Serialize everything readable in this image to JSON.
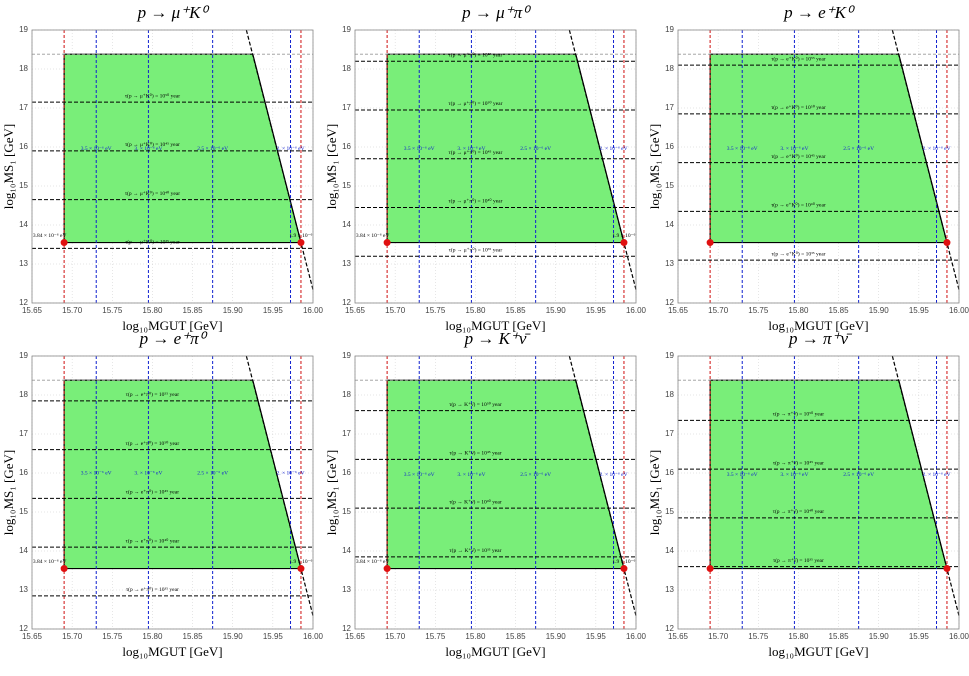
{
  "chart_data": [
    {
      "type": "region",
      "title": "p → μ⁺K⁰",
      "x_label": "log₁₀MGUT [GeV]",
      "y_label": "log₁₀MS₁ [GeV]",
      "xlim": [
        15.65,
        16.0
      ],
      "ylim": [
        12,
        19
      ],
      "xticks": [
        15.65,
        {
          "value": 15.7,
          "label": "15.70"
        },
        15.75,
        {
          "value": 15.8,
          "label": "15.80"
        },
        15.85,
        {
          "value": 15.9,
          "label": "15.90"
        },
        15.95,
        {
          "value": 16,
          "label": "16.00"
        }
      ],
      "yticks": [
        12,
        13,
        14,
        15,
        16,
        17,
        18,
        19
      ],
      "grid": true,
      "fill": "#79ee79",
      "region": {
        "x": [
          15.69,
          15.69,
          15.925,
          15.985
        ],
        "y": [
          13.55,
          18.38,
          18.38,
          13.55
        ]
      },
      "boundary": {
        "x": [
          15.917,
          16.0
        ],
        "y": [
          19,
          12.34
        ]
      },
      "points": {
        "x": [
          15.69,
          15.985
        ],
        "y": [
          13.55,
          13.55
        ],
        "color": "#e01010"
      },
      "vlines": [
        {
          "x": 15.69,
          "color": "#d01010"
        },
        {
          "x": 15.73,
          "color": "#1020d0"
        },
        {
          "x": 15.795,
          "color": "#1020d0"
        },
        {
          "x": 15.875,
          "color": "#1020d0"
        },
        {
          "x": 15.972,
          "color": "#1020d0"
        },
        {
          "x": 15.985,
          "color": "#d01010"
        }
      ],
      "ref_lines": [
        {
          "y": 18.38,
          "color": "#999999"
        }
      ],
      "hlines": [
        {
          "y": 17.15,
          "label": "τ(p → μ⁺K⁰) = 10⁵⁰ year"
        },
        {
          "y": 15.9,
          "label": "τ(p → μ⁺K⁰) = 10⁴⁵ year"
        },
        {
          "y": 14.65,
          "label": "τ(p → μ⁺K⁰) = 10⁴⁰ year"
        },
        {
          "y": 13.4,
          "label": "τ(p → μ⁺K⁰) = 10³⁵ year"
        }
      ],
      "annotations": [
        {
          "x": 15.672,
          "y": 13.72,
          "text": "3.84 × 10⁻⁶ eV",
          "color": "#000000"
        },
        {
          "x": 15.985,
          "y": 13.72,
          "text": "1.9 × 10⁻⁶",
          "color": "#000000"
        },
        {
          "x": 15.73,
          "y": 15.95,
          "text": "3.5 × 10⁻⁶ eV",
          "color": "#1020d0"
        },
        {
          "x": 15.795,
          "y": 15.95,
          "text": "3. × 10⁻⁶ eV",
          "color": "#1020d0"
        },
        {
          "x": 15.875,
          "y": 15.95,
          "text": "2.5 × 10⁻⁶ eV",
          "color": "#1020d0"
        },
        {
          "x": 15.972,
          "y": 15.95,
          "text": "2. × 10⁻⁶ eV",
          "color": "#1020d0"
        }
      ]
    },
    {
      "type": "region",
      "title": "p → μ⁺π⁰",
      "x_label": "log₁₀MGUT [GeV]",
      "y_label": "log₁₀MS₁ [GeV]",
      "xlim": [
        15.65,
        16.0
      ],
      "ylim": [
        12,
        19
      ],
      "xticks": [
        15.65,
        {
          "value": 15.7,
          "label": "15.70"
        },
        15.75,
        {
          "value": 15.8,
          "label": "15.80"
        },
        15.85,
        {
          "value": 15.9,
          "label": "15.90"
        },
        15.95,
        {
          "value": 16,
          "label": "16.00"
        }
      ],
      "yticks": [
        12,
        13,
        14,
        15,
        16,
        17,
        18,
        19
      ],
      "grid": true,
      "fill": "#79ee79",
      "region": {
        "x": [
          15.69,
          15.69,
          15.925,
          15.985
        ],
        "y": [
          13.55,
          18.38,
          18.38,
          13.55
        ]
      },
      "boundary": {
        "x": [
          15.917,
          16.0
        ],
        "y": [
          19,
          12.34
        ]
      },
      "points": {
        "x": [
          15.69,
          15.985
        ],
        "y": [
          13.55,
          13.55
        ],
        "color": "#e01010"
      },
      "vlines": [
        {
          "x": 15.69,
          "color": "#d01010"
        },
        {
          "x": 15.73,
          "color": "#1020d0"
        },
        {
          "x": 15.795,
          "color": "#1020d0"
        },
        {
          "x": 15.875,
          "color": "#1020d0"
        },
        {
          "x": 15.972,
          "color": "#1020d0"
        },
        {
          "x": 15.985,
          "color": "#d01010"
        }
      ],
      "ref_lines": [
        {
          "y": 18.38,
          "color": "#999999"
        }
      ],
      "hlines": [
        {
          "y": 18.2,
          "label": "τ(p → μ⁺π⁰) = 10⁵⁵ year"
        },
        {
          "y": 16.95,
          "label": "τ(p → μ⁺π⁰) = 10⁵⁰ year"
        },
        {
          "y": 15.7,
          "label": "τ(p → μ⁺π⁰) = 10⁴⁵ year"
        },
        {
          "y": 14.45,
          "label": "τ(p → μ⁺π⁰) = 10⁴⁰ year"
        },
        {
          "y": 13.2,
          "label": "τ(p → μ⁺π⁰) = 10³⁵ year"
        }
      ],
      "annotations": [
        {
          "x": 15.672,
          "y": 13.72,
          "text": "3.84 × 10⁻⁶ eV",
          "color": "#000000"
        },
        {
          "x": 15.985,
          "y": 13.72,
          "text": "1.9 × 10⁻⁶",
          "color": "#000000"
        },
        {
          "x": 15.73,
          "y": 15.95,
          "text": "3.5 × 10⁻⁶ eV",
          "color": "#1020d0"
        },
        {
          "x": 15.795,
          "y": 15.95,
          "text": "3. × 10⁻⁶ eV",
          "color": "#1020d0"
        },
        {
          "x": 15.875,
          "y": 15.95,
          "text": "2.5 × 10⁻⁶ eV",
          "color": "#1020d0"
        },
        {
          "x": 15.972,
          "y": 15.95,
          "text": "2. × 10⁻⁶ eV",
          "color": "#1020d0"
        }
      ]
    },
    {
      "type": "region",
      "title": "p → e⁺K⁰",
      "x_label": "log₁₀MGUT [GeV]",
      "y_label": "log₁₀MS₁ [GeV]",
      "xlim": [
        15.65,
        16.0
      ],
      "ylim": [
        12,
        19
      ],
      "xticks": [
        15.65,
        {
          "value": 15.7,
          "label": "15.70"
        },
        15.75,
        {
          "value": 15.8,
          "label": "15.80"
        },
        15.85,
        {
          "value": 15.9,
          "label": "15.90"
        },
        15.95,
        {
          "value": 16,
          "label": "16.00"
        }
      ],
      "yticks": [
        12,
        13,
        14,
        15,
        16,
        17,
        18,
        19
      ],
      "grid": true,
      "fill": "#79ee79",
      "region": {
        "x": [
          15.69,
          15.69,
          15.925,
          15.985
        ],
        "y": [
          13.55,
          18.38,
          18.38,
          13.55
        ]
      },
      "boundary": {
        "x": [
          15.917,
          16.0
        ],
        "y": [
          19,
          12.34
        ]
      },
      "points": {
        "x": [
          15.69,
          15.985
        ],
        "y": [
          13.55,
          13.55
        ],
        "color": "#e01010"
      },
      "vlines": [
        {
          "x": 15.69,
          "color": "#d01010"
        },
        {
          "x": 15.73,
          "color": "#1020d0"
        },
        {
          "x": 15.795,
          "color": "#1020d0"
        },
        {
          "x": 15.875,
          "color": "#1020d0"
        },
        {
          "x": 15.972,
          "color": "#1020d0"
        },
        {
          "x": 15.985,
          "color": "#d01010"
        }
      ],
      "ref_lines": [
        {
          "y": 18.38,
          "color": "#999999"
        }
      ],
      "hlines": [
        {
          "y": 18.1,
          "label": "τ(p → e⁺K⁰) = 10⁵⁵ year"
        },
        {
          "y": 16.85,
          "label": "τ(p → e⁺K⁰) = 10⁵⁰ year"
        },
        {
          "y": 15.6,
          "label": "τ(p → e⁺K⁰) = 10⁴⁵ year"
        },
        {
          "y": 14.35,
          "label": "τ(p → e⁺K⁰) = 10⁴⁰ year"
        },
        {
          "y": 13.1,
          "label": "τ(p → e⁺K⁰) = 10³⁵ year"
        }
      ],
      "annotations": [
        {
          "x": 15.73,
          "y": 15.95,
          "text": "3.5 × 10⁻⁶ eV",
          "color": "#1020d0"
        },
        {
          "x": 15.795,
          "y": 15.95,
          "text": "3. × 10⁻⁶ eV",
          "color": "#1020d0"
        },
        {
          "x": 15.875,
          "y": 15.95,
          "text": "2.5 × 10⁻⁶ eV",
          "color": "#1020d0"
        },
        {
          "x": 15.972,
          "y": 15.95,
          "text": "2. × 10⁻⁶ eV",
          "color": "#1020d0"
        }
      ]
    },
    {
      "type": "region",
      "title": "p → e⁺π⁰",
      "x_label": "log₁₀MGUT [GeV]",
      "y_label": "log₁₀MS₁ [GeV]",
      "xlim": [
        15.65,
        16.0
      ],
      "ylim": [
        12,
        19
      ],
      "xticks": [
        15.65,
        {
          "value": 15.7,
          "label": "15.70"
        },
        15.75,
        {
          "value": 15.8,
          "label": "15.80"
        },
        15.85,
        {
          "value": 15.9,
          "label": "15.90"
        },
        15.95,
        {
          "value": 16,
          "label": "16.00"
        }
      ],
      "yticks": [
        12,
        13,
        14,
        15,
        16,
        17,
        18,
        19
      ],
      "grid": true,
      "fill": "#79ee79",
      "region": {
        "x": [
          15.69,
          15.69,
          15.925,
          15.985
        ],
        "y": [
          13.55,
          18.38,
          18.38,
          13.55
        ]
      },
      "boundary": {
        "x": [
          15.917,
          16.0
        ],
        "y": [
          19,
          12.34
        ]
      },
      "points": {
        "x": [
          15.69,
          15.985
        ],
        "y": [
          13.55,
          13.55
        ],
        "color": "#e01010"
      },
      "vlines": [
        {
          "x": 15.69,
          "color": "#d01010"
        },
        {
          "x": 15.73,
          "color": "#1020d0"
        },
        {
          "x": 15.795,
          "color": "#1020d0"
        },
        {
          "x": 15.875,
          "color": "#1020d0"
        },
        {
          "x": 15.972,
          "color": "#1020d0"
        },
        {
          "x": 15.985,
          "color": "#d01010"
        }
      ],
      "ref_lines": [
        {
          "y": 18.38,
          "color": "#999999"
        }
      ],
      "hlines": [
        {
          "y": 17.85,
          "label": "τ(p → e⁺π⁰) = 10⁵⁵ year"
        },
        {
          "y": 16.6,
          "label": "τ(p → e⁺π⁰) = 10⁵⁰ year"
        },
        {
          "y": 15.35,
          "label": "τ(p → e⁺π⁰) = 10⁴⁵ year"
        },
        {
          "y": 14.1,
          "label": "τ(p → e⁺π⁰) = 10⁴⁰ year"
        },
        {
          "y": 12.85,
          "label": "τ(p → e⁺π⁰) = 10³⁵ year"
        }
      ],
      "annotations": [
        {
          "x": 15.672,
          "y": 13.72,
          "text": "3.84 × 10⁻⁶ eV",
          "color": "#000000"
        },
        {
          "x": 15.985,
          "y": 13.72,
          "text": "1.9 × 10⁻⁶",
          "color": "#000000"
        },
        {
          "x": 15.73,
          "y": 16.0,
          "text": "3.5 × 10⁻⁶ eV",
          "color": "#1020d0"
        },
        {
          "x": 15.795,
          "y": 16.0,
          "text": "3. × 10⁻⁶ eV",
          "color": "#1020d0"
        },
        {
          "x": 15.875,
          "y": 16.0,
          "text": "2.5 × 10⁻⁶ eV",
          "color": "#1020d0"
        },
        {
          "x": 15.972,
          "y": 16.0,
          "text": "2. × 10⁻⁶ eV",
          "color": "#1020d0"
        }
      ]
    },
    {
      "type": "region",
      "title": "p → K⁺ν̄",
      "x_label": "log₁₀MGUT [GeV]",
      "y_label": "log₁₀MS₁ [GeV]",
      "xlim": [
        15.65,
        16.0
      ],
      "ylim": [
        12,
        19
      ],
      "xticks": [
        15.65,
        {
          "value": 15.7,
          "label": "15.70"
        },
        15.75,
        {
          "value": 15.8,
          "label": "15.80"
        },
        15.85,
        {
          "value": 15.9,
          "label": "15.90"
        },
        15.95,
        {
          "value": 16,
          "label": "16.00"
        }
      ],
      "yticks": [
        12,
        13,
        14,
        15,
        16,
        17,
        18,
        19
      ],
      "grid": true,
      "fill": "#79ee79",
      "region": {
        "x": [
          15.69,
          15.69,
          15.925,
          15.985
        ],
        "y": [
          13.55,
          18.38,
          18.38,
          13.55
        ]
      },
      "boundary": {
        "x": [
          15.917,
          16.0
        ],
        "y": [
          19,
          12.34
        ]
      },
      "points": {
        "x": [
          15.69,
          15.985
        ],
        "y": [
          13.55,
          13.55
        ],
        "color": "#e01010"
      },
      "vlines": [
        {
          "x": 15.69,
          "color": "#d01010"
        },
        {
          "x": 15.73,
          "color": "#1020d0"
        },
        {
          "x": 15.795,
          "color": "#1020d0"
        },
        {
          "x": 15.875,
          "color": "#1020d0"
        },
        {
          "x": 15.972,
          "color": "#1020d0"
        },
        {
          "x": 15.985,
          "color": "#d01010"
        }
      ],
      "ref_lines": [
        {
          "y": 18.38,
          "color": "#999999"
        }
      ],
      "hlines": [
        {
          "y": 17.6,
          "label": "τ(p → K⁺ν̄) = 10⁵⁰ year"
        },
        {
          "y": 16.35,
          "label": "τ(p → K⁺ν̄) = 10⁴⁵ year"
        },
        {
          "y": 15.1,
          "label": "τ(p → K⁺ν̄) = 10⁴⁰ year"
        },
        {
          "y": 13.85,
          "label": "τ(p → K⁺ν̄) = 10³⁵ year"
        }
      ],
      "annotations": [
        {
          "x": 15.672,
          "y": 13.72,
          "text": "3.84 × 10⁻⁶ eV",
          "color": "#000000"
        },
        {
          "x": 15.985,
          "y": 13.72,
          "text": "1.9 × 10⁻⁶",
          "color": "#000000"
        },
        {
          "x": 15.73,
          "y": 15.95,
          "text": "3.5 × 10⁻⁶ eV",
          "color": "#1020d0"
        },
        {
          "x": 15.795,
          "y": 15.95,
          "text": "3. × 10⁻⁶ eV",
          "color": "#1020d0"
        },
        {
          "x": 15.875,
          "y": 15.95,
          "text": "2.5 × 10⁻⁶ eV",
          "color": "#1020d0"
        },
        {
          "x": 15.972,
          "y": 15.95,
          "text": "2. × 10⁻⁶ eV",
          "color": "#1020d0"
        }
      ]
    },
    {
      "type": "region",
      "title": "p → π⁺ν̄",
      "x_label": "log₁₀MGUT [GeV]",
      "y_label": "log₁₀MS₁ [GeV]",
      "xlim": [
        15.65,
        16.0
      ],
      "ylim": [
        12,
        19
      ],
      "xticks": [
        15.65,
        {
          "value": 15.7,
          "label": "15.70"
        },
        15.75,
        {
          "value": 15.8,
          "label": "15.80"
        },
        15.85,
        {
          "value": 15.9,
          "label": "15.90"
        },
        15.95,
        {
          "value": 16,
          "label": "16.00"
        }
      ],
      "yticks": [
        12,
        13,
        14,
        15,
        16,
        17,
        18,
        19
      ],
      "grid": true,
      "fill": "#79ee79",
      "region": {
        "x": [
          15.69,
          15.69,
          15.925,
          15.985
        ],
        "y": [
          13.55,
          18.38,
          18.38,
          13.55
        ]
      },
      "boundary": {
        "x": [
          15.917,
          16.0
        ],
        "y": [
          19,
          12.34
        ]
      },
      "points": {
        "x": [
          15.69,
          15.985
        ],
        "y": [
          13.55,
          13.55
        ],
        "color": "#e01010"
      },
      "vlines": [
        {
          "x": 15.69,
          "color": "#d01010"
        },
        {
          "x": 15.73,
          "color": "#1020d0"
        },
        {
          "x": 15.795,
          "color": "#1020d0"
        },
        {
          "x": 15.875,
          "color": "#1020d0"
        },
        {
          "x": 15.972,
          "color": "#1020d0"
        },
        {
          "x": 15.985,
          "color": "#d01010"
        }
      ],
      "ref_lines": [
        {
          "y": 18.38,
          "color": "#999999"
        }
      ],
      "hlines": [
        {
          "y": 17.35,
          "label": "τ(p → π⁺ν̄) = 10⁵⁰ year"
        },
        {
          "y": 16.1,
          "label": "τ(p → π⁺ν̄) = 10⁴⁵ year"
        },
        {
          "y": 14.85,
          "label": "τ(p → π⁺ν̄) = 10⁴⁰ year"
        },
        {
          "y": 13.6,
          "label": "τ(p → π⁺ν̄) = 10³⁵ year"
        }
      ],
      "annotations": [
        {
          "x": 15.73,
          "y": 15.95,
          "text": "3.5 × 10⁻⁶ eV",
          "color": "#1020d0"
        },
        {
          "x": 15.795,
          "y": 15.95,
          "text": "3. × 10⁻⁶ eV",
          "color": "#1020d0"
        },
        {
          "x": 15.875,
          "y": 15.95,
          "text": "2.5 × 10⁻⁶ eV",
          "color": "#1020d0"
        },
        {
          "x": 15.972,
          "y": 15.95,
          "text": "2. × 10⁻⁶ eV",
          "color": "#1020d0"
        }
      ]
    }
  ]
}
